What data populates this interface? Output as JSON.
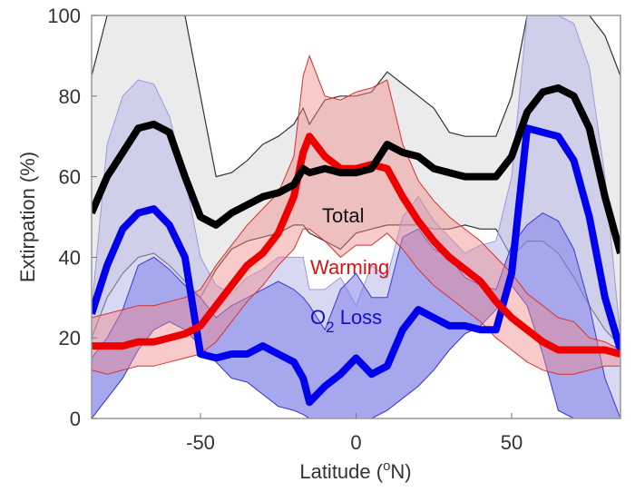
{
  "chart_data": {
    "type": "line",
    "title": "",
    "xlabel": "Latitude (°N)",
    "xlabel_parts": {
      "pre": "Latitude (",
      "sup": "o",
      "post": "N)"
    },
    "ylabel": "Extirpation (%)",
    "xlim": [
      -85,
      85
    ],
    "ylim": [
      0,
      100
    ],
    "xticks": [
      -50,
      0,
      50
    ],
    "xtick_labels": [
      "-50",
      "0",
      "50"
    ],
    "yticks": [
      0,
      20,
      40,
      60,
      80,
      100
    ],
    "ytick_labels": [
      "0",
      "20",
      "40",
      "60",
      "80",
      "100"
    ],
    "grid": false,
    "annotations": {
      "total": "Total",
      "warming": "Warming",
      "o2_loss": {
        "pre": "O",
        "sub": "2",
        "post": " Loss"
      }
    },
    "colors": {
      "total": "#000000",
      "warming": "#ee0000",
      "o2": "#0000ee",
      "o2_alt": "#8888dd"
    },
    "x": [
      -85,
      -80,
      -75,
      -70,
      -65,
      -60,
      -55,
      -50,
      -45,
      -40,
      -35,
      -30,
      -25,
      -20,
      -17,
      -15,
      -10,
      -5,
      0,
      5,
      10,
      15,
      20,
      25,
      30,
      35,
      40,
      45,
      50,
      55,
      60,
      65,
      70,
      75,
      80,
      85
    ],
    "series": [
      {
        "name": "Total",
        "role": "median",
        "values": [
          51,
          60,
          66,
          72,
          73,
          71,
          60,
          50,
          48,
          51,
          53,
          55,
          56,
          58,
          62,
          61,
          62,
          61,
          61,
          62,
          68,
          66,
          65,
          62,
          61,
          60,
          60,
          60,
          65,
          76,
          81,
          82,
          80,
          72,
          55,
          41
        ]
      },
      {
        "name": "Total",
        "role": "upper",
        "values": [
          85,
          100,
          100,
          100,
          100,
          100,
          100,
          80,
          60,
          61,
          64,
          68,
          70,
          73,
          77,
          73,
          79,
          80,
          80,
          81,
          86,
          83,
          80,
          77,
          71,
          70,
          70,
          70,
          80,
          100,
          100,
          100,
          100,
          100,
          95,
          85
        ]
      },
      {
        "name": "Total",
        "role": "lower",
        "values": [
          20,
          30,
          36,
          40,
          41,
          38,
          34,
          30,
          37,
          42,
          44,
          45,
          46,
          48,
          48,
          46,
          44,
          42,
          46,
          47,
          48,
          48,
          48,
          47,
          47,
          48,
          47,
          47,
          40,
          44,
          44,
          41,
          35,
          28,
          22,
          18
        ]
      },
      {
        "name": "Warming",
        "role": "median",
        "values": [
          18,
          18,
          18,
          19,
          19,
          20,
          21,
          23,
          28,
          33,
          38,
          41,
          46,
          55,
          66,
          70,
          65,
          62,
          62,
          63,
          62,
          55,
          49,
          44,
          40,
          37,
          34,
          29,
          25,
          22,
          19,
          17,
          17,
          17,
          17,
          16
        ]
      },
      {
        "name": "Warming",
        "role": "upper",
        "values": [
          25,
          26,
          27,
          28,
          28,
          29,
          30,
          32,
          38,
          43,
          48,
          52,
          56,
          65,
          85,
          90,
          80,
          79,
          81,
          82,
          84,
          68,
          59,
          54,
          50,
          47,
          44,
          40,
          36,
          31,
          28,
          25,
          24,
          20,
          19,
          17
        ]
      },
      {
        "name": "Warming",
        "role": "lower",
        "values": [
          12,
          11,
          12,
          13,
          13,
          14,
          15,
          16,
          19,
          24,
          29,
          33,
          38,
          42,
          47,
          47,
          44,
          40,
          43,
          43,
          46,
          42,
          37,
          33,
          30,
          27,
          24,
          20,
          17,
          14,
          12,
          11,
          11,
          12,
          13,
          13
        ]
      },
      {
        "name": "O2 Loss",
        "role": "median",
        "values": [
          26,
          38,
          47,
          51,
          52,
          48,
          40,
          16,
          15,
          16,
          16,
          18,
          16,
          14,
          10,
          4,
          8,
          11,
          15,
          11,
          13,
          22,
          27,
          25,
          23,
          23,
          22,
          22,
          36,
          72,
          71,
          70,
          64,
          50,
          30,
          17
        ]
      },
      {
        "name": "O2 Loss",
        "role": "upper",
        "values": [
          27,
          68,
          80,
          84,
          83,
          75,
          60,
          40,
          33,
          31,
          35,
          37,
          40,
          40,
          40,
          32,
          32,
          35,
          28,
          38,
          35,
          50,
          55,
          49,
          45,
          41,
          43,
          44,
          60,
          100,
          100,
          100,
          98,
          87,
          60,
          20
        ]
      },
      {
        "name": "O2 Loss",
        "role": "lower",
        "values": [
          0,
          5,
          10,
          17,
          22,
          24,
          22,
          18,
          14,
          10,
          9,
          6,
          3,
          2,
          1,
          0,
          0,
          0,
          0,
          0,
          2,
          5,
          8,
          12,
          17,
          21,
          23,
          27,
          33,
          28,
          16,
          2,
          0,
          0,
          0,
          0
        ]
      },
      {
        "name": "O2 Loss",
        "role": "lower-strong-upper",
        "values": [
          15,
          20,
          27,
          38,
          40,
          37,
          33,
          30,
          25,
          28,
          30,
          32,
          34,
          32,
          30,
          28,
          22,
          32,
          36,
          30,
          30,
          45,
          47,
          42,
          40,
          35,
          33,
          32,
          43,
          48,
          51,
          49,
          42,
          28,
          10,
          0
        ]
      }
    ]
  }
}
